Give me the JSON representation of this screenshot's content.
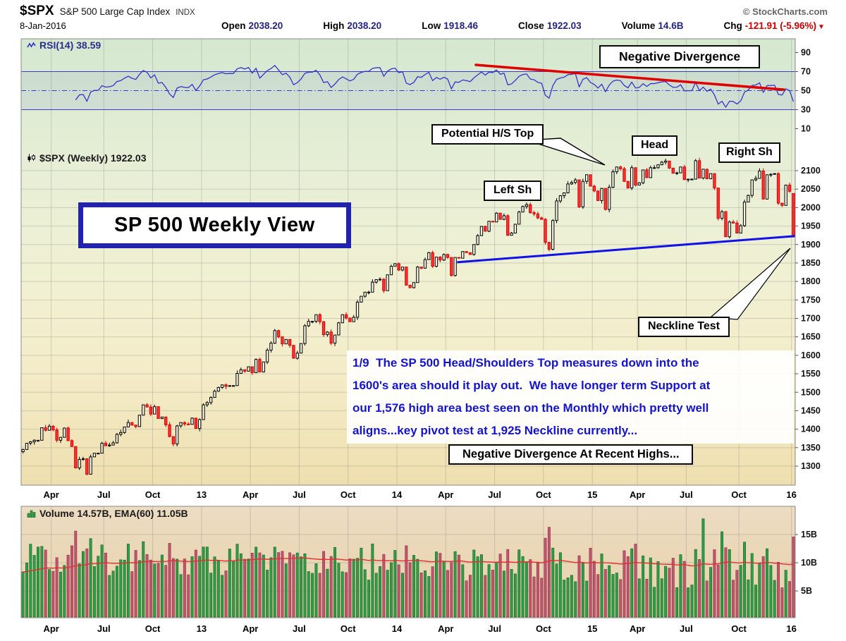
{
  "header": {
    "symbol": "$SPX",
    "index_name": "S&P 500 Large Cap Index",
    "exchange": "INDX",
    "credit": "© StockCharts.com",
    "date": "8-Jan-2016",
    "quote": [
      {
        "label": "Open",
        "value": "2038.20"
      },
      {
        "label": "High",
        "value": "2038.20"
      },
      {
        "label": "Low",
        "value": "1918.46"
      },
      {
        "label": "Close",
        "value": "1922.03"
      },
      {
        "label": "Volume",
        "value": "14.6B"
      },
      {
        "label": "Chg",
        "value": "-121.91 (-5.96%)",
        "negative": true
      }
    ]
  },
  "rsi_panel": {
    "label": "RSI(14) 38.59"
  },
  "price_panel": {
    "label": "$SPX (Weekly) 1922.03"
  },
  "volume_panel": {
    "label": "Volume 14.57B, EMA(60) 11.05B"
  },
  "colors": {
    "up_candle": "#000000",
    "down_candle": "#d40000",
    "neckline": "#1212e8",
    "divergence": "#e00000",
    "rsi_line": "#3434cc",
    "volume_up": "#2f9e44",
    "volume_down": "#c2566d",
    "volume_ema": "#e03030",
    "note_text": "#1414cc",
    "title_border": "#2222b0"
  },
  "chart_data": {
    "type": "candlestick",
    "timeframe": "weekly",
    "symbol": "$SPX",
    "title": "SP 500 Weekly View",
    "x_ticks": [
      {
        "label": "Apr",
        "week": 8
      },
      {
        "label": "Jul",
        "week": 22
      },
      {
        "label": "Oct",
        "week": 35
      },
      {
        "label": "13",
        "week": 48
      },
      {
        "label": "Apr",
        "week": 61
      },
      {
        "label": "Jul",
        "week": 74
      },
      {
        "label": "Oct",
        "week": 87
      },
      {
        "label": "14",
        "week": 100
      },
      {
        "label": "Apr",
        "week": 113
      },
      {
        "label": "Jul",
        "week": 126
      },
      {
        "label": "Oct",
        "week": 139
      },
      {
        "label": "15",
        "week": 152
      },
      {
        "label": "Apr",
        "week": 164
      },
      {
        "label": "Jul",
        "week": 177
      },
      {
        "label": "Oct",
        "week": 191
      },
      {
        "label": "16",
        "week": 205
      }
    ],
    "price_axis": {
      "min": 1300,
      "max": 2100,
      "step": 50
    },
    "rsi_axis": [
      90,
      70,
      50,
      30,
      10
    ],
    "rsi_levels": {
      "overbought": 70,
      "midline": 50,
      "oversold": 30
    },
    "rsi_current": 38.59,
    "volume_axis_b": [
      15,
      10,
      5
    ],
    "volume_last_b": 14.57,
    "volume_ema60_b": 11.05,
    "volume_spikes_b": {
      "140": 16.3,
      "181": 17.8,
      "186": 15.5
    },
    "closes": [
      1345,
      1362,
      1366,
      1370,
      1370,
      1404,
      1397,
      1408,
      1398,
      1370,
      1378,
      1403,
      1369,
      1353,
      1295,
      1318,
      1320,
      1278,
      1325,
      1335,
      1335,
      1362,
      1355,
      1357,
      1363,
      1386,
      1391,
      1406,
      1418,
      1411,
      1407,
      1438,
      1466,
      1460,
      1441,
      1461,
      1429,
      1433,
      1412,
      1380,
      1360,
      1409,
      1418,
      1414,
      1413,
      1430,
      1402,
      1426,
      1466,
      1472,
      1486,
      1503,
      1513,
      1520,
      1516,
      1518,
      1518,
      1551,
      1561,
      1557,
      1569,
      1553,
      1589,
      1555,
      1582,
      1614,
      1633,
      1667,
      1650,
      1631,
      1643,
      1627,
      1592,
      1606,
      1632,
      1680,
      1692,
      1692,
      1710,
      1691,
      1656,
      1663,
      1633,
      1655,
      1688,
      1710,
      1701,
      1691,
      1703,
      1744,
      1760,
      1771,
      1771,
      1798,
      1805,
      1806,
      1775,
      1818,
      1841,
      1848,
      1831,
      1839,
      1790,
      1783,
      1797,
      1839,
      1836,
      1859,
      1878,
      1841,
      1866,
      1858,
      1873,
      1865,
      1816,
      1865,
      1863,
      1881,
      1878,
      1873,
      1900,
      1924,
      1949,
      1936,
      1963,
      1961,
      1985,
      1968,
      1978,
      1925,
      1931,
      1955,
      1988,
      2003,
      2008,
      1986,
      1983,
      1972,
      1968,
      1906,
      1887,
      1965,
      2018,
      2032,
      2040,
      2064,
      2068,
      2075,
      2002,
      2071,
      2089,
      2058,
      2045,
      2019,
      2052,
      1995,
      2055,
      2097,
      2110,
      2105,
      2071,
      2053,
      2108,
      2061,
      2067,
      2102,
      2081,
      2108,
      2108,
      2116,
      2123,
      2126,
      2107,
      2093,
      2094,
      2110,
      2076,
      2077,
      2077,
      2127,
      2080,
      2104,
      2078,
      2092,
      2053,
      1971,
      1989,
      1921,
      1961,
      1958,
      1931,
      1951,
      2015,
      2033,
      2075,
      2079,
      2099,
      2023,
      2089,
      2090,
      2092,
      2012,
      2006,
      2061,
      2044,
      1922.03
    ],
    "last_candle": {
      "open": 2038.2,
      "high": 2038.2,
      "low": 1918.46,
      "close": 1922.03
    },
    "neckline": {
      "from_week": 116,
      "from_price": 1852,
      "to_week": 206,
      "to_price": 1923
    },
    "divergence_line_rsi": {
      "from_week": 121,
      "from_rsi": 77,
      "to_week": 203,
      "to_rsi": 51
    },
    "annotations": {
      "negative_divergence": "Negative Divergence",
      "potential_hs_top": "Potential H/S Top",
      "left_shoulder": "Left Sh",
      "head": "Head",
      "right_shoulder": "Right Sh",
      "neckline_test": "Neckline Test",
      "title_box": "SP 500 Weekly View",
      "recent_highs": "Negative Divergence At Recent Highs...",
      "note_lines": [
        "1/9  The SP 500 Head/Shoulders Top measures down into the",
        "1600's area should it play out.  We have longer term Support at",
        "our 1,576 high area best seen on the Monthly which pretty well",
        "aligns...key pivot test at 1,925 Neckline currently..."
      ]
    }
  }
}
